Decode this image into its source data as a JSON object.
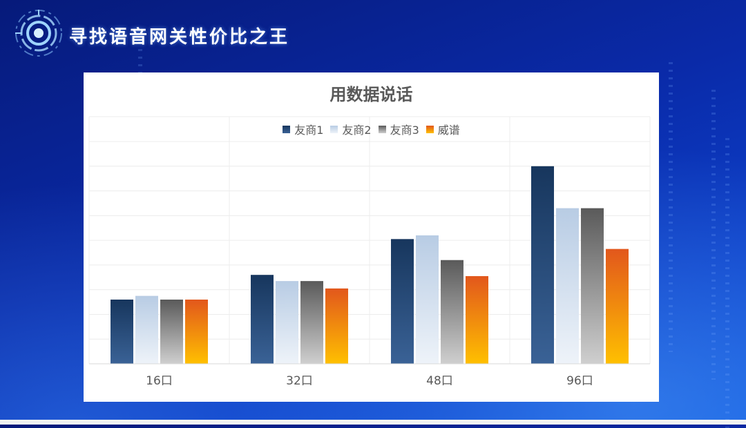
{
  "slide": {
    "title": "寻找语音网关性价比之王"
  },
  "chart_data": {
    "type": "bar",
    "title": "用数据说话",
    "xlabel": "",
    "ylabel": "",
    "categories": [
      "16口",
      "32口",
      "48口",
      "96口"
    ],
    "series": [
      {
        "name": "友商1",
        "values": [
          2.6,
          3.6,
          5.05,
          8.0
        ]
      },
      {
        "name": "友商2",
        "values": [
          2.75,
          3.35,
          5.2,
          6.3
        ]
      },
      {
        "name": "友商3",
        "values": [
          2.6,
          3.35,
          4.2,
          6.3
        ]
      },
      {
        "name": "威谱",
        "values": [
          2.6,
          3.05,
          3.55,
          4.65
        ]
      }
    ],
    "ylim": [
      0,
      9
    ],
    "grid": true,
    "legend_position": "top",
    "colors": [
      [
        "#17365d",
        "#3a6296"
      ],
      [
        "#b8cce4",
        "#eef3f9"
      ],
      [
        "#5a5a5a",
        "#cfcfcf"
      ],
      [
        "#e2571c",
        "#ffc000"
      ]
    ]
  }
}
